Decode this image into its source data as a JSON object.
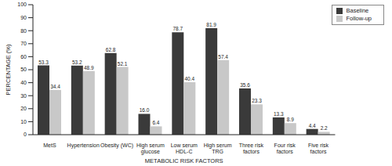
{
  "chart_data": {
    "type": "bar",
    "x_label": "METABOLIC RISK FACTORS",
    "y_label": "PERCENTAGE (%)",
    "categories": [
      "MetS",
      "Hypertension",
      "Obesity (WC)",
      "High serum glucose",
      "Low serum HDL-C",
      "High serum TRG",
      "Three risk factors",
      "Four risk factors",
      "Five risk factors"
    ],
    "series": [
      {
        "name": "Baseline",
        "color": "#3a3a3a",
        "values": [
          53.3,
          53.2,
          62.8,
          16.0,
          78.7,
          81.9,
          35.6,
          13.3,
          4.4
        ],
        "value_labels": [
          "53.3",
          "53.2",
          "62.8",
          "16.0",
          "78.7",
          "81.9",
          "35.6",
          "13.3",
          "4.4"
        ]
      },
      {
        "name": "Follow-up",
        "color": "#c8c8c8",
        "values": [
          34.4,
          48.9,
          52.1,
          6.4,
          40.4,
          57.4,
          23.3,
          8.9,
          2.2
        ],
        "value_labels": [
          "34.4",
          "48.9",
          "52.1",
          "6.4",
          "40.4",
          "57.4",
          "23.3",
          "8.9",
          "2.2"
        ]
      }
    ],
    "ylim": [
      0,
      100
    ],
    "yticks": [
      0,
      10,
      20,
      30,
      40,
      50,
      60,
      70,
      80,
      90,
      100
    ],
    "grid": false,
    "legend": "upper right",
    "data_labels": true
  }
}
